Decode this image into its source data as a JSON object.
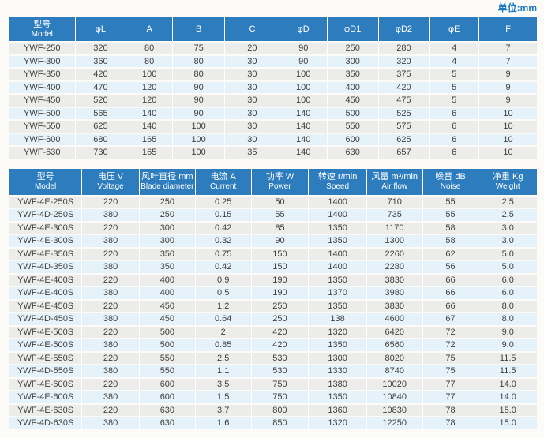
{
  "unit_label": "单位:mm",
  "colors": {
    "header_bg": "#2d7cbe",
    "row_gray": "#ececeb",
    "row_blue": "#e6f2f9",
    "unit_text": "#1b7ac1",
    "text": "#3f3f3f"
  },
  "dimensions_table": {
    "headers": [
      {
        "cn": "型号",
        "en": "Model"
      },
      {
        "cn": "φL",
        "en": ""
      },
      {
        "cn": "A",
        "en": ""
      },
      {
        "cn": "B",
        "en": ""
      },
      {
        "cn": "C",
        "en": ""
      },
      {
        "cn": "φD",
        "en": ""
      },
      {
        "cn": "φD1",
        "en": ""
      },
      {
        "cn": "φD2",
        "en": ""
      },
      {
        "cn": "φE",
        "en": ""
      },
      {
        "cn": "F",
        "en": ""
      }
    ],
    "rows": [
      [
        "YWF-250",
        "320",
        "80",
        "75",
        "20",
        "90",
        "250",
        "280",
        "4",
        "7"
      ],
      [
        "YWF-300",
        "360",
        "80",
        "80",
        "30",
        "90",
        "300",
        "320",
        "4",
        "7"
      ],
      [
        "YWF-350",
        "420",
        "100",
        "80",
        "30",
        "100",
        "350",
        "375",
        "5",
        "9"
      ],
      [
        "YWF-400",
        "470",
        "120",
        "90",
        "30",
        "100",
        "400",
        "420",
        "5",
        "9"
      ],
      [
        "YWF-450",
        "520",
        "120",
        "90",
        "30",
        "100",
        "450",
        "475",
        "5",
        "9"
      ],
      [
        "YWF-500",
        "565",
        "140",
        "90",
        "30",
        "140",
        "500",
        "525",
        "6",
        "10"
      ],
      [
        "YWF-550",
        "625",
        "140",
        "100",
        "30",
        "140",
        "550",
        "575",
        "6",
        "10"
      ],
      [
        "YWF-600",
        "680",
        "165",
        "100",
        "30",
        "140",
        "600",
        "625",
        "6",
        "10"
      ],
      [
        "YWF-630",
        "730",
        "165",
        "100",
        "35",
        "140",
        "630",
        "657",
        "6",
        "10"
      ]
    ]
  },
  "performance_table": {
    "headers": [
      {
        "cn": "型号",
        "en": "Model"
      },
      {
        "cn": "电压 V",
        "en": "Voltage"
      },
      {
        "cn": "风叶直径 mm",
        "en": "Blade diameter"
      },
      {
        "cn": "电流 A",
        "en": "Current"
      },
      {
        "cn": "功率 W",
        "en": "Power"
      },
      {
        "cn": "转速 r/min",
        "en": "Speed"
      },
      {
        "cn": "风量 m³/min",
        "en": "Air flow"
      },
      {
        "cn": "噪音 dB",
        "en": "Noise"
      },
      {
        "cn": "净重 Kg",
        "en": "Weight"
      }
    ],
    "rows": [
      [
        "YWF-4E-250S",
        "220",
        "250",
        "0.25",
        "50",
        "1400",
        "710",
        "55",
        "2.5"
      ],
      [
        "YWF-4D-250S",
        "380",
        "250",
        "0.15",
        "55",
        "1400",
        "735",
        "55",
        "2.5"
      ],
      [
        "YWF-4E-300S",
        "220",
        "300",
        "0.42",
        "85",
        "1350",
        "1170",
        "58",
        "3.0"
      ],
      [
        "YWF-4E-300S",
        "380",
        "300",
        "0.32",
        "90",
        "1350",
        "1300",
        "58",
        "3.0"
      ],
      [
        "YWF-4E-350S",
        "220",
        "350",
        "0.75",
        "150",
        "1400",
        "2260",
        "62",
        "5.0"
      ],
      [
        "YWF-4D-350S",
        "380",
        "350",
        "0.42",
        "150",
        "1400",
        "2280",
        "56",
        "5.0"
      ],
      [
        "YWF-4E-400S",
        "220",
        "400",
        "0.9",
        "190",
        "1350",
        "3830",
        "66",
        "6.0"
      ],
      [
        "YWF-4E-400S",
        "380",
        "400",
        "0.5",
        "190",
        "1370",
        "3980",
        "66",
        "6.0"
      ],
      [
        "YWF-4E-450S",
        "220",
        "450",
        "1.2",
        "250",
        "1350",
        "3830",
        "66",
        "8.0"
      ],
      [
        "YWF-4D-450S",
        "380",
        "450",
        "0.64",
        "250",
        "138",
        "4600",
        "67",
        "8.0"
      ],
      [
        "YWF-4E-500S",
        "220",
        "500",
        "2",
        "420",
        "1320",
        "6420",
        "72",
        "9.0"
      ],
      [
        "YWF-4E-500S",
        "380",
        "500",
        "0.85",
        "420",
        "1350",
        "6560",
        "72",
        "9.0"
      ],
      [
        "YWF-4E-550S",
        "220",
        "550",
        "2.5",
        "530",
        "1300",
        "8020",
        "75",
        "11.5"
      ],
      [
        "YWF-4D-550S",
        "380",
        "550",
        "1.1",
        "530",
        "1330",
        "8740",
        "75",
        "11.5"
      ],
      [
        "YWF-4E-600S",
        "220",
        "600",
        "3.5",
        "750",
        "1380",
        "10020",
        "77",
        "14.0"
      ],
      [
        "YWF-4E-600S",
        "380",
        "600",
        "1.5",
        "750",
        "1350",
        "10840",
        "77",
        "14.0"
      ],
      [
        "YWF-4E-630S",
        "220",
        "630",
        "3.7",
        "800",
        "1360",
        "10830",
        "78",
        "15.0"
      ],
      [
        "YWF-4D-630S",
        "380",
        "630",
        "1.6",
        "850",
        "1320",
        "12250",
        "78",
        "15.0"
      ]
    ]
  }
}
